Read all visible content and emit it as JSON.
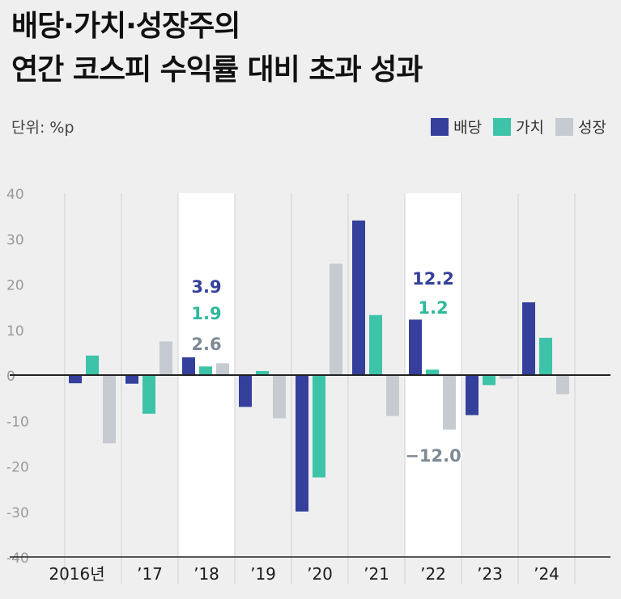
{
  "title": {
    "line1": "배당·가치·성장주의",
    "line2": "연간 코스피 수익률 대비 초과 성과"
  },
  "unit_label": "단위: %p",
  "colors": {
    "dividend": "#34409c",
    "value": "#3dc4a8",
    "growth": "#c5cbd1",
    "highlight": "#ffffff",
    "grid": "#d2d2d2",
    "axis": "#222222",
    "tick": "#9a9a9a"
  },
  "chart_data": {
    "type": "bar",
    "title": "배당·가치·성장주의 연간 코스피 수익률 대비 초과 성과",
    "ylabel": "단위: %p",
    "categories": [
      "2016년",
      "’17",
      "’18",
      "’19",
      "’20",
      "’21",
      "’22",
      "’23",
      "’24"
    ],
    "series": [
      {
        "name": "배당",
        "key": "dividend",
        "values": [
          -1.8,
          -1.9,
          3.9,
          -7.0,
          -30.0,
          34.0,
          12.2,
          -8.8,
          16.0
        ]
      },
      {
        "name": "가치",
        "key": "value",
        "values": [
          4.3,
          -8.5,
          1.9,
          0.9,
          -22.5,
          13.2,
          1.2,
          -2.2,
          8.2
        ]
      },
      {
        "name": "성장",
        "key": "growth",
        "values": [
          -15.0,
          7.4,
          2.6,
          -9.5,
          24.5,
          -9.0,
          -12.0,
          -0.8,
          -4.2
        ]
      }
    ],
    "ylim": [
      -40,
      40
    ],
    "yticks": [
      40,
      30,
      20,
      10,
      0,
      -10,
      -20,
      -30,
      -40
    ],
    "highlighted": [
      "’18",
      "’22"
    ],
    "annotations": [
      {
        "category": "’18",
        "series": "dividend",
        "text": "3.9"
      },
      {
        "category": "’18",
        "series": "value",
        "text": "1.9"
      },
      {
        "category": "’18",
        "series": "growth",
        "text": "2.6"
      },
      {
        "category": "’22",
        "series": "dividend",
        "text": "12.2"
      },
      {
        "category": "’22",
        "series": "value",
        "text": "1.2"
      },
      {
        "category": "’22",
        "series": "growth",
        "text": "−12.0"
      }
    ],
    "legend_position": "top-right"
  }
}
